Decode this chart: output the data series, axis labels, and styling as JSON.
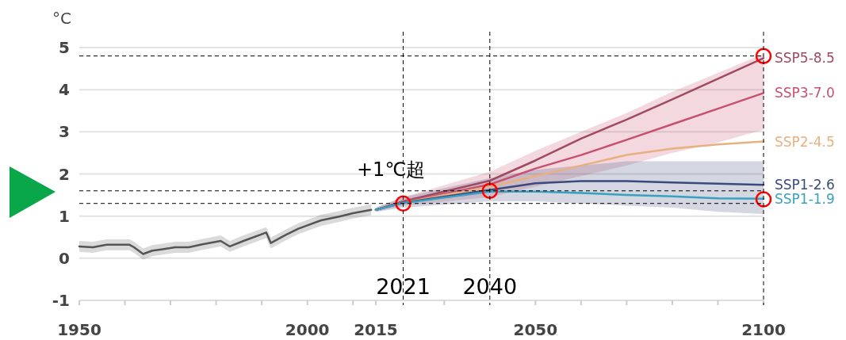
{
  "chart_data": {
    "type": "line",
    "ylabel": "°C",
    "xlim": [
      1950,
      2100
    ],
    "ylim": [
      -1,
      5
    ],
    "xticks": [
      1950,
      {
        "value": 1960,
        "label": null
      },
      {
        "value": 1970,
        "label": null
      },
      {
        "value": 1980,
        "label": null
      },
      {
        "value": 1990,
        "label": null
      },
      2000,
      {
        "value": 2010,
        "label": null
      },
      2015,
      {
        "value": 2030,
        "label": null
      },
      2050,
      {
        "value": 2060,
        "label": null
      },
      {
        "value": 2070,
        "label": null
      },
      {
        "value": 2080,
        "label": null
      },
      {
        "value": 2090,
        "label": null
      },
      2100
    ],
    "yticks": [
      -1,
      0,
      1,
      2,
      3,
      4,
      5
    ],
    "grid": "y",
    "series": [
      {
        "color": "#555555",
        "x": [
          1950,
          1953,
          1956,
          1961,
          1962,
          1964,
          1966,
          1968,
          1971,
          1974,
          1977,
          1981,
          1983,
          1986,
          1991,
          1992,
          1995,
          1998,
          2003,
          2007,
          2010,
          2014
        ],
        "values": [
          0.28,
          0.26,
          0.32,
          0.32,
          0.26,
          0.1,
          0.18,
          0.21,
          0.26,
          0.26,
          0.33,
          0.41,
          0.28,
          0.41,
          0.61,
          0.36,
          0.54,
          0.7,
          0.9,
          0.99,
          1.07,
          1.15
        ],
        "lower": [
          0.15,
          0.13,
          0.19,
          0.19,
          0.13,
          -0.03,
          0.05,
          0.08,
          0.13,
          0.13,
          0.2,
          0.28,
          0.15,
          0.28,
          0.48,
          0.23,
          0.41,
          0.57,
          0.77,
          0.86,
          0.94,
          1.02
        ],
        "upper": [
          0.41,
          0.39,
          0.45,
          0.45,
          0.39,
          0.23,
          0.31,
          0.34,
          0.39,
          0.39,
          0.46,
          0.54,
          0.41,
          0.54,
          0.74,
          0.49,
          0.67,
          0.83,
          1.03,
          1.12,
          1.2,
          1.28
        ]
      },
      {
        "name": "SSP5-8.5",
        "color": "#a04a60",
        "x": [
          2015,
          2021,
          2040,
          2050,
          2060,
          2070,
          2080,
          2090,
          2100
        ],
        "values": [
          1.15,
          1.35,
          1.84,
          2.32,
          2.84,
          3.29,
          3.77,
          4.26,
          4.75
        ]
      },
      {
        "name": "SSP3-7.0",
        "color": "#c8506e",
        "x": [
          2015,
          2021,
          2040,
          2050,
          2060,
          2070,
          2080,
          2090,
          2100
        ],
        "values": [
          1.15,
          1.33,
          1.75,
          2.13,
          2.45,
          2.81,
          3.18,
          3.55,
          3.92
        ],
        "lower": [
          1.1,
          1.25,
          1.45,
          1.7,
          1.95,
          2.2,
          2.5,
          2.75,
          3.05
        ],
        "upper": [
          1.2,
          1.45,
          2.05,
          2.55,
          3.0,
          3.45,
          3.95,
          4.4,
          4.85
        ]
      },
      {
        "name": "SSP2-4.5",
        "color": "#e8b080",
        "x": [
          2015,
          2021,
          2040,
          2050,
          2060,
          2070,
          2080,
          2090,
          2100
        ],
        "values": [
          1.15,
          1.32,
          1.7,
          1.95,
          2.2,
          2.45,
          2.6,
          2.7,
          2.77
        ]
      },
      {
        "name": "SSP1-2.6",
        "color": "#3a4a7a",
        "x": [
          2015,
          2021,
          2040,
          2050,
          2060,
          2070,
          2080,
          2090,
          2100
        ],
        "values": [
          1.15,
          1.32,
          1.62,
          1.78,
          1.83,
          1.83,
          1.8,
          1.77,
          1.74
        ],
        "lower": [
          1.1,
          1.2,
          1.35,
          1.35,
          1.3,
          1.25,
          1.2,
          1.1,
          1.05
        ],
        "upper": [
          1.2,
          1.45,
          1.9,
          2.1,
          2.2,
          2.3,
          2.3,
          2.3,
          2.3
        ]
      },
      {
        "name": "SSP1-1.9",
        "color": "#3aa0c0",
        "x": [
          2015,
          2021,
          2040,
          2050,
          2060,
          2070,
          2080,
          2090,
          2100
        ],
        "values": [
          1.15,
          1.31,
          1.58,
          1.58,
          1.55,
          1.5,
          1.47,
          1.42,
          1.41
        ]
      },
      {
        "type": "scatter",
        "marker": "circle",
        "color": "#ff0000",
        "x": [
          2021,
          2040,
          2100,
          2100
        ],
        "values": [
          1.3,
          1.6,
          4.8,
          1.4
        ]
      }
    ],
    "ref_lines": [
      {
        "axis": "x",
        "value": 2021,
        "label": "2021",
        "line_style": "dashed",
        "color": "#000000"
      },
      {
        "axis": "x",
        "value": 2040,
        "label": "2040",
        "line_style": "dashed",
        "color": "#000000"
      },
      {
        "axis": "x",
        "value": 2100,
        "line_style": "dashed",
        "color": "#000000"
      },
      {
        "axis": "y",
        "value": 4.8,
        "line_style": "dashed",
        "color": "#000000"
      },
      {
        "axis": "y",
        "value": 1.6,
        "line_style": "dashed",
        "color": "#000000"
      },
      {
        "axis": "y",
        "value": 1.3,
        "line_style": "dashed",
        "color": "#000000"
      }
    ],
    "annotations": [
      "+1℃超"
    ]
  }
}
